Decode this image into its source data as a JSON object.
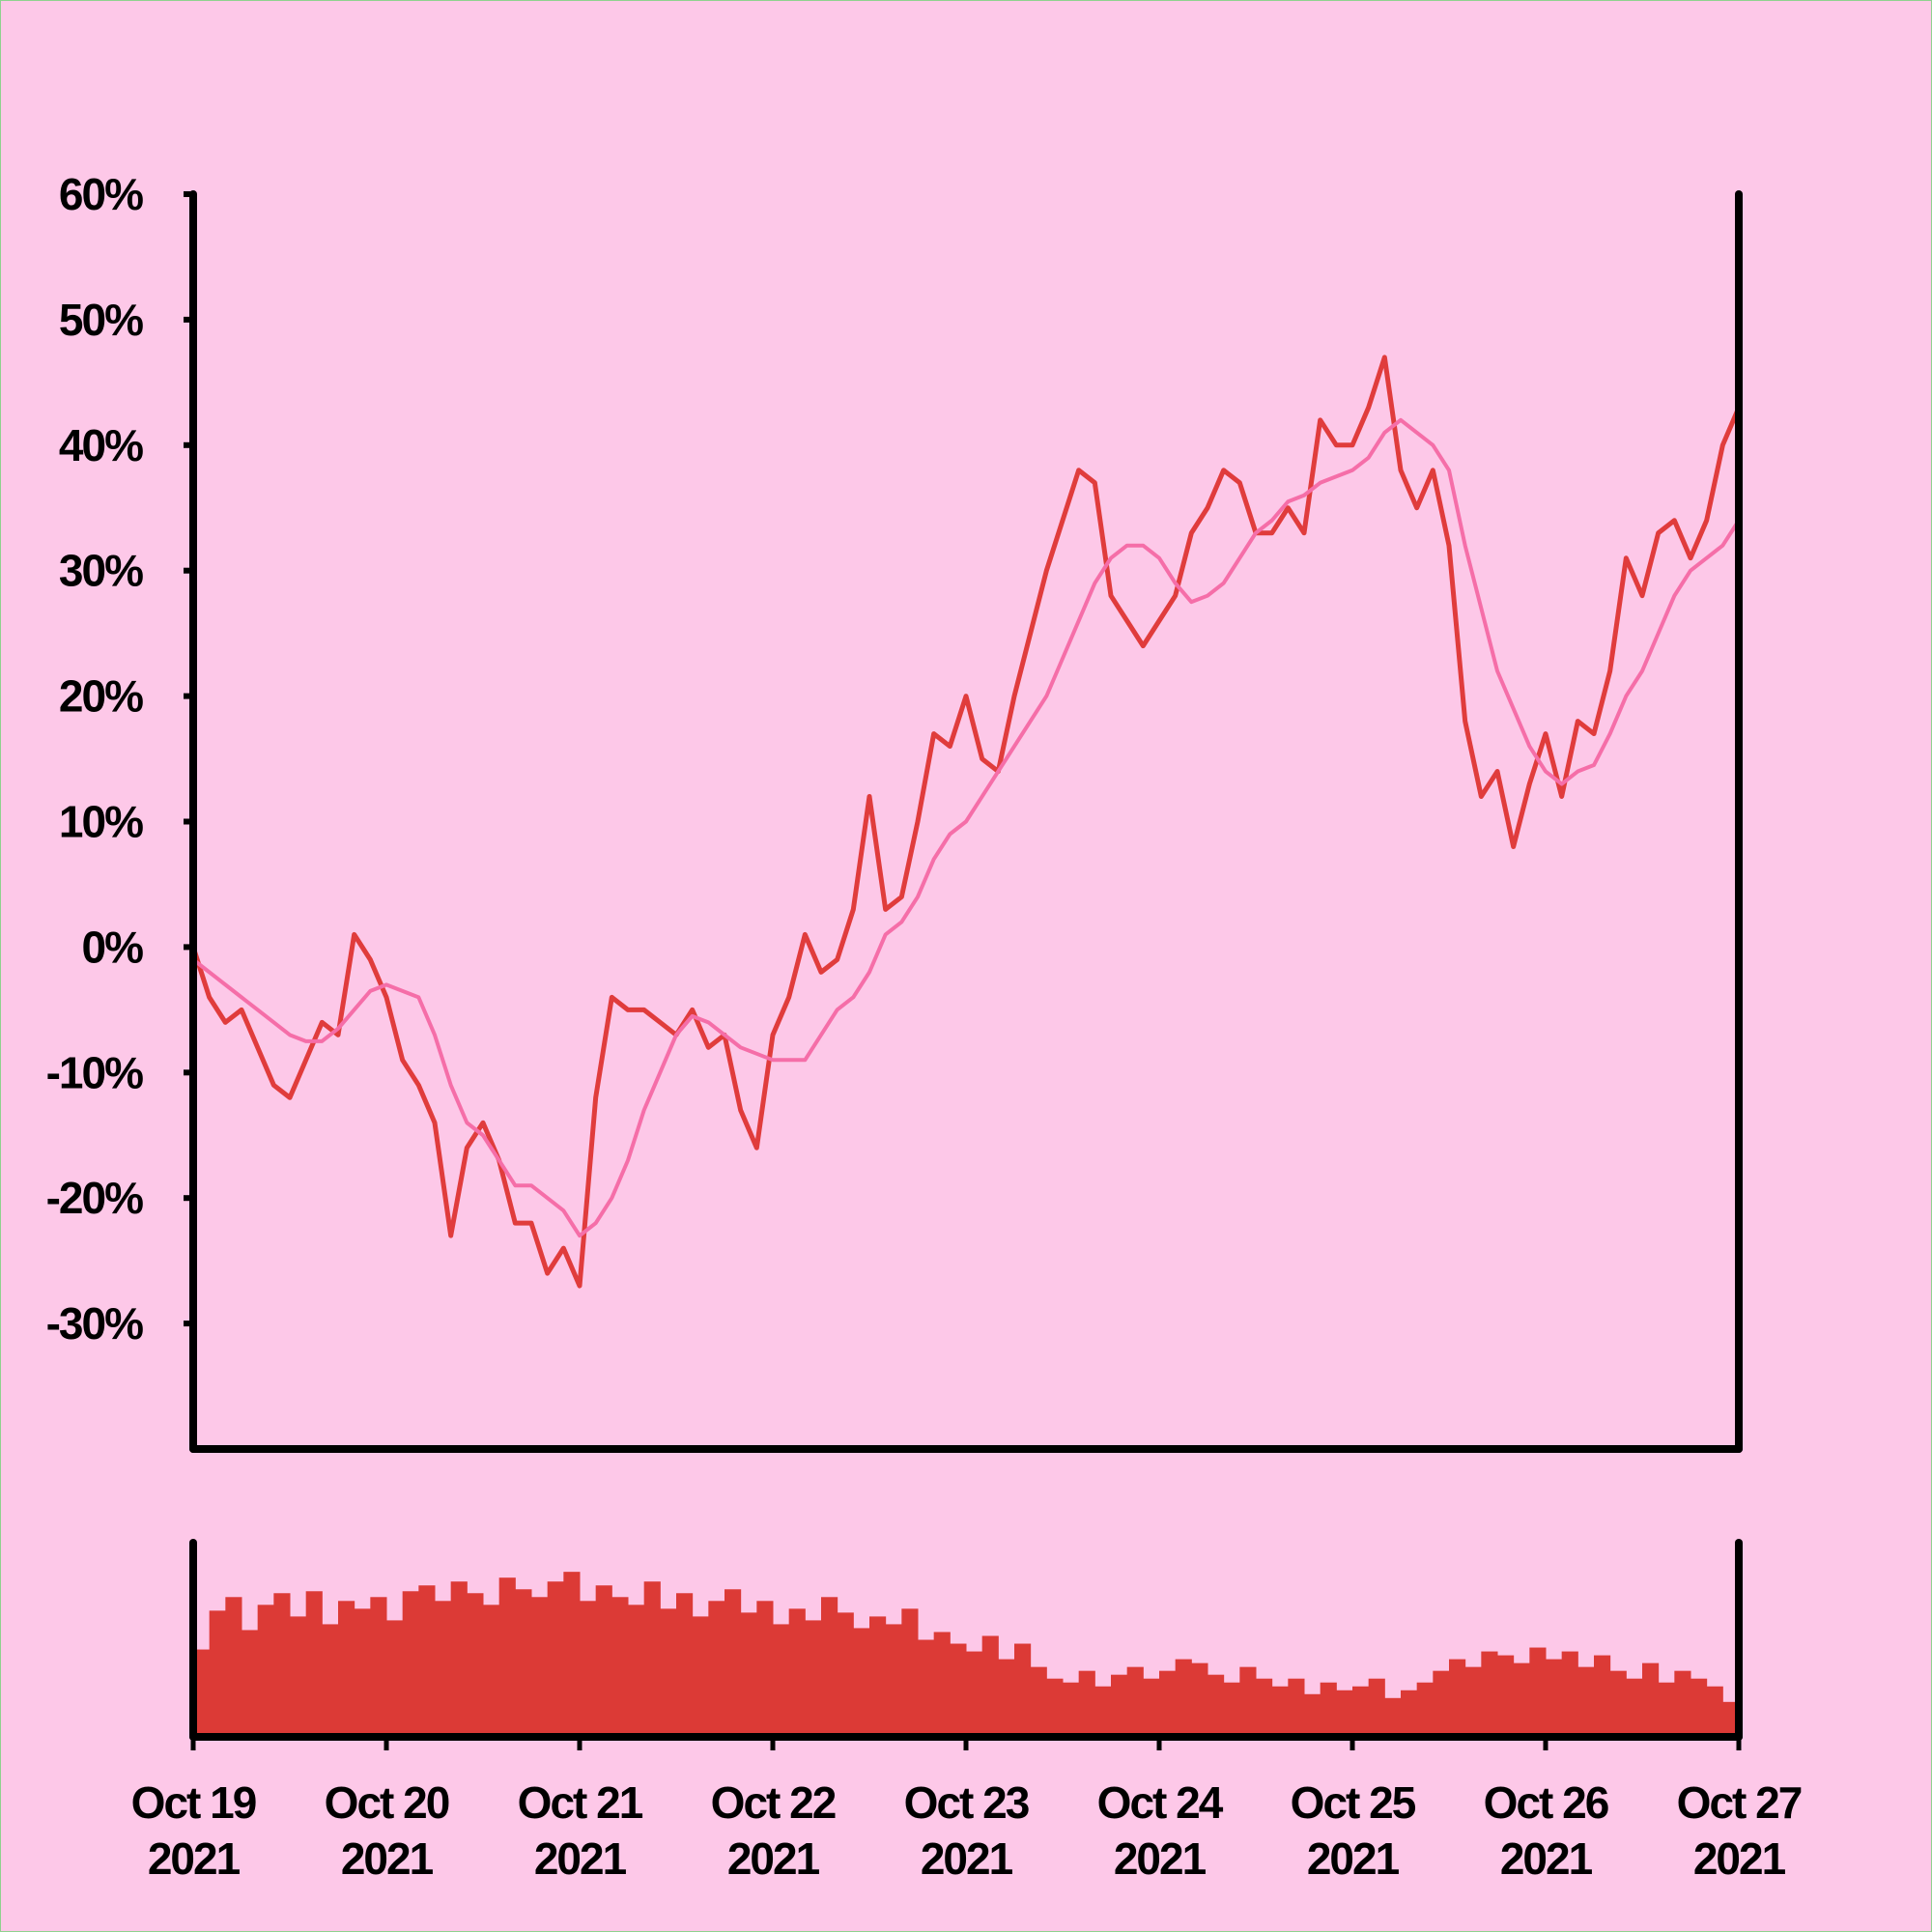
{
  "chart_data": {
    "type": "line",
    "background": "#fdc8e8",
    "xlim": [
      "2021-10-19",
      "2021-10-27"
    ],
    "xticks": [
      {
        "value": "2021-10-19",
        "label": [
          "Oct 19",
          "2021"
        ]
      },
      {
        "value": "2021-10-20",
        "label": [
          "Oct 20",
          "2021"
        ]
      },
      {
        "value": "2021-10-21",
        "label": [
          "Oct 21",
          "2021"
        ]
      },
      {
        "value": "2021-10-22",
        "label": [
          "Oct 22",
          "2021"
        ]
      },
      {
        "value": "2021-10-23",
        "label": [
          "Oct 23",
          "2021"
        ]
      },
      {
        "value": "2021-10-24",
        "label": [
          "Oct 24",
          "2021"
        ]
      },
      {
        "value": "2021-10-25",
        "label": [
          "Oct 25",
          "2021"
        ]
      },
      {
        "value": "2021-10-26",
        "label": [
          "Oct 26",
          "2021"
        ]
      },
      {
        "value": "2021-10-27",
        "label": [
          "Oct 27",
          "2021"
        ]
      }
    ],
    "ylim": [
      -40,
      60
    ],
    "yticks": [
      {
        "value": 60,
        "label": "60%"
      },
      {
        "value": 50,
        "label": "50%"
      },
      {
        "value": 40,
        "label": "40%"
      },
      {
        "value": 30,
        "label": "30%"
      },
      {
        "value": 20,
        "label": "20%"
      },
      {
        "value": 10,
        "label": "10%"
      },
      {
        "value": 0,
        "label": "0%"
      },
      {
        "value": -10,
        "label": "-10%"
      },
      {
        "value": -20,
        "label": "-20%"
      },
      {
        "value": -30,
        "label": "-30%"
      }
    ],
    "series": [
      {
        "color": "#e03c3c",
        "width": 5,
        "values": [
          0,
          -4,
          -6,
          -5,
          -8,
          -11,
          -12,
          -9,
          -6,
          -7,
          1,
          -1,
          -4,
          -9,
          -11,
          -14,
          -23,
          -16,
          -14,
          -17,
          -22,
          -22,
          -26,
          -24,
          -27,
          -12,
          -4,
          -5,
          -5,
          -6,
          -7,
          -5,
          -8,
          -7,
          -13,
          -16,
          -7,
          -4,
          1,
          -2,
          -1,
          3,
          12,
          3,
          4,
          10,
          17,
          16,
          20,
          15,
          14,
          20,
          25,
          30,
          34,
          38,
          37,
          28,
          26,
          24,
          26,
          28,
          33,
          35,
          38,
          37,
          33,
          33,
          35,
          33,
          42,
          40,
          40,
          43,
          47,
          38,
          35,
          38,
          32,
          18,
          12,
          14,
          8,
          13,
          17,
          12,
          18,
          17,
          22,
          31,
          28,
          33,
          34,
          31,
          34,
          40,
          43
        ]
      },
      {
        "color": "#f56ea8",
        "width": 4,
        "values": [
          -1,
          -2,
          -3,
          -4,
          -5,
          -6,
          -7,
          -7.5,
          -7.5,
          -6.5,
          -5,
          -3.5,
          -3,
          -3.5,
          -4,
          -7,
          -11,
          -14,
          -15,
          -17,
          -19,
          -19,
          -20,
          -21,
          -23,
          -22,
          -20,
          -17,
          -13,
          -10,
          -7,
          -5.5,
          -6,
          -7,
          -8,
          -8.5,
          -9,
          -9,
          -9,
          -7,
          -5,
          -4,
          -2,
          1,
          2,
          4,
          7,
          9,
          10,
          12,
          14,
          16,
          18,
          20,
          23,
          26,
          29,
          31,
          32,
          32,
          31,
          29,
          27.5,
          28,
          29,
          31,
          33,
          34,
          35.5,
          36,
          37,
          37.5,
          38,
          39,
          41,
          42,
          41,
          40,
          38,
          32,
          27,
          22,
          19,
          16,
          14,
          13,
          14,
          14.5,
          17,
          20,
          22,
          25,
          28,
          30,
          31,
          32,
          34
        ]
      }
    ],
    "volume_color": "#dc3a36",
    "volume_ylim": [
      0,
      100
    ],
    "volume_values": [
      45,
      65,
      72,
      55,
      68,
      74,
      62,
      75,
      58,
      70,
      66,
      72,
      60,
      75,
      78,
      70,
      80,
      74,
      68,
      82,
      76,
      72,
      80,
      85,
      70,
      78,
      72,
      68,
      80,
      66,
      74,
      62,
      70,
      76,
      64,
      70,
      58,
      66,
      60,
      72,
      64,
      56,
      62,
      58,
      66,
      50,
      54,
      48,
      44,
      52,
      40,
      48,
      36,
      30,
      28,
      34,
      26,
      32,
      36,
      30,
      34,
      40,
      38,
      32,
      28,
      36,
      30,
      26,
      30,
      22,
      28,
      24,
      26,
      30,
      20,
      24,
      28,
      34,
      40,
      36,
      44,
      42,
      38,
      46,
      40,
      44,
      36,
      42,
      34,
      30,
      38,
      28,
      34,
      30,
      26,
      18
    ]
  }
}
